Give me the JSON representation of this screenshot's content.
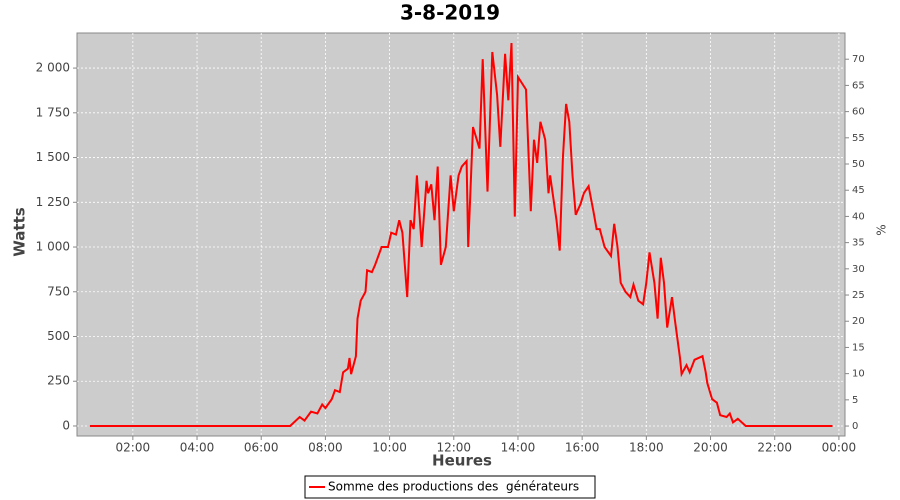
{
  "chart_data": {
    "type": "line",
    "title": "3-8-2019",
    "x_label": "Heures",
    "y_label": "Watts",
    "y2_label": "%",
    "x": [
      0.66,
      6.9,
      7.2,
      7.35,
      7.55,
      7.75,
      7.9,
      8.0,
      8.2,
      8.3,
      8.45,
      8.55,
      8.7,
      8.75,
      8.8,
      8.95,
      9.0,
      9.1,
      9.25,
      9.3,
      9.45,
      9.55,
      9.75,
      9.95,
      10.05,
      10.2,
      10.3,
      10.4,
      10.55,
      10.65,
      10.75,
      10.85,
      11.0,
      11.15,
      11.2,
      11.3,
      11.4,
      11.5,
      11.6,
      11.75,
      11.9,
      12.0,
      12.15,
      12.25,
      12.4,
      12.45,
      12.6,
      12.8,
      12.9,
      13.05,
      13.2,
      13.35,
      13.45,
      13.6,
      13.7,
      13.8,
      13.9,
      14.0,
      14.25,
      14.4,
      14.5,
      14.6,
      14.7,
      14.85,
      14.95,
      15.0,
      15.2,
      15.3,
      15.4,
      15.5,
      15.6,
      15.7,
      15.8,
      15.95,
      16.05,
      16.2,
      16.35,
      16.45,
      16.55,
      16.7,
      16.9,
      17.0,
      17.1,
      17.2,
      17.35,
      17.5,
      17.6,
      17.75,
      17.9,
      18.0,
      18.1,
      18.25,
      18.35,
      18.45,
      18.55,
      18.65,
      18.8,
      18.9,
      19.05,
      19.1,
      19.25,
      19.35,
      19.5,
      19.75,
      19.85,
      19.9,
      20.05,
      20.2,
      20.3,
      20.5,
      20.6,
      20.7,
      20.85,
      21.1,
      23.8
    ],
    "series": [
      {
        "name": "Somme des productions des  générateurs",
        "color": "#ff0000",
        "axis": "y",
        "values": [
          0,
          0,
          50,
          30,
          80,
          70,
          120,
          100,
          150,
          200,
          190,
          300,
          320,
          380,
          290,
          390,
          600,
          700,
          750,
          870,
          860,
          900,
          1000,
          1000,
          1080,
          1070,
          1150,
          1080,
          720,
          1150,
          1100,
          1400,
          1000,
          1370,
          1300,
          1350,
          1150,
          1450,
          900,
          1000,
          1400,
          1200,
          1400,
          1450,
          1480,
          1000,
          1670,
          1550,
          2050,
          1310,
          2090,
          1850,
          1560,
          2080,
          1820,
          2140,
          1170,
          1950,
          1880,
          1200,
          1600,
          1470,
          1700,
          1600,
          1300,
          1400,
          1150,
          980,
          1500,
          1800,
          1700,
          1400,
          1180,
          1240,
          1300,
          1340,
          1200,
          1100,
          1100,
          1000,
          950,
          1130,
          1000,
          800,
          750,
          720,
          790,
          700,
          680,
          800,
          970,
          800,
          600,
          940,
          800,
          550,
          720,
          580,
          380,
          290,
          340,
          300,
          370,
          390,
          300,
          240,
          150,
          130,
          60,
          50,
          70,
          20,
          40,
          0,
          0
        ]
      }
    ],
    "xlim": [
      0.26,
      24.19
    ],
    "xticks": [
      {
        "value": 2,
        "label": "02:00"
      },
      {
        "value": 4,
        "label": "04:00"
      },
      {
        "value": 6,
        "label": "06:00"
      },
      {
        "value": 8,
        "label": "08:00"
      },
      {
        "value": 10,
        "label": "10:00"
      },
      {
        "value": 12,
        "label": "12:00"
      },
      {
        "value": 14,
        "label": "14:00"
      },
      {
        "value": 16,
        "label": "16:00"
      },
      {
        "value": 18,
        "label": "18:00"
      },
      {
        "value": 20,
        "label": "20:00"
      },
      {
        "value": 22,
        "label": "22:00"
      },
      {
        "value": 24,
        "label": "00:00"
      }
    ],
    "ylim": [
      -56,
      2196
    ],
    "yticks": [
      0,
      250,
      500,
      750,
      {
        "value": 1000,
        "label": "1 000"
      },
      {
        "value": 1250,
        "label": "1 250"
      },
      {
        "value": 1500,
        "label": "1 500"
      },
      {
        "value": 1750,
        "label": "1 750"
      },
      {
        "value": 2000,
        "label": "2 000"
      }
    ],
    "y2lim": [
      -1.9,
      75
    ],
    "y2ticks": [
      0,
      5,
      10,
      15,
      20,
      25,
      30,
      35,
      40,
      45,
      50,
      55,
      60,
      65,
      70
    ],
    "grid": true,
    "legend": "bottom"
  }
}
